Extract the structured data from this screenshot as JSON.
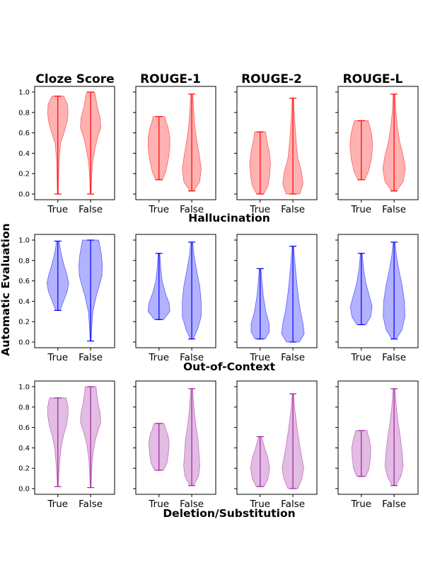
{
  "figure": {
    "ylabel": "Automatic Evaluation",
    "columns": [
      "Cloze Score",
      "ROUGE-1",
      "ROUGE-2",
      "ROUGE-L"
    ],
    "rows": [
      {
        "label": "Hallucination",
        "color": "#ff0000"
      },
      {
        "label": "Out-of-Context",
        "color": "#0000ff"
      },
      {
        "label": "Deletion/Substitution",
        "color": "#a020a0"
      }
    ],
    "categories": [
      "True",
      "False"
    ],
    "yticks": [
      "0.0",
      "0.2",
      "0.4",
      "0.6",
      "0.8",
      "1.0"
    ]
  },
  "chart_data": [
    {
      "type": "violin",
      "row": "Hallucination",
      "title": "Cloze Score",
      "categories": [
        "True",
        "False"
      ],
      "ylim": [
        0,
        1
      ],
      "series": [
        {
          "category": "True",
          "min": 0.0,
          "max": 0.96,
          "profile": [
            [
              0.0,
              0.02
            ],
            [
              0.1,
              0.03
            ],
            [
              0.2,
              0.04
            ],
            [
              0.35,
              0.06
            ],
            [
              0.5,
              0.12
            ],
            [
              0.62,
              0.3
            ],
            [
              0.72,
              0.42
            ],
            [
              0.8,
              0.45
            ],
            [
              0.88,
              0.43
            ],
            [
              0.93,
              0.32
            ],
            [
              0.96,
              0.26
            ]
          ]
        },
        {
          "category": "False",
          "min": 0.0,
          "max": 1.0,
          "profile": [
            [
              0.0,
              0.02
            ],
            [
              0.15,
              0.04
            ],
            [
              0.3,
              0.08
            ],
            [
              0.45,
              0.2
            ],
            [
              0.55,
              0.3
            ],
            [
              0.65,
              0.45
            ],
            [
              0.75,
              0.42
            ],
            [
              0.85,
              0.3
            ],
            [
              0.95,
              0.22
            ],
            [
              1.0,
              0.18
            ]
          ]
        }
      ]
    },
    {
      "type": "violin",
      "row": "Hallucination",
      "title": "ROUGE-1",
      "categories": [
        "True",
        "False"
      ],
      "ylim": [
        0,
        1
      ],
      "series": [
        {
          "category": "True",
          "min": 0.14,
          "max": 0.76,
          "profile": [
            [
              0.14,
              0.15
            ],
            [
              0.22,
              0.3
            ],
            [
              0.35,
              0.42
            ],
            [
              0.45,
              0.48
            ],
            [
              0.55,
              0.48
            ],
            [
              0.65,
              0.4
            ],
            [
              0.72,
              0.3
            ],
            [
              0.76,
              0.26
            ]
          ]
        },
        {
          "category": "False",
          "min": 0.03,
          "max": 0.98,
          "profile": [
            [
              0.03,
              0.08
            ],
            [
              0.12,
              0.35
            ],
            [
              0.25,
              0.42
            ],
            [
              0.4,
              0.32
            ],
            [
              0.55,
              0.2
            ],
            [
              0.7,
              0.12
            ],
            [
              0.85,
              0.08
            ],
            [
              0.98,
              0.04
            ]
          ]
        }
      ]
    },
    {
      "type": "violin",
      "row": "Hallucination",
      "title": "ROUGE-2",
      "categories": [
        "True",
        "False"
      ],
      "ylim": [
        0,
        1
      ],
      "series": [
        {
          "category": "True",
          "min": 0.0,
          "max": 0.61,
          "profile": [
            [
              0.0,
              0.15
            ],
            [
              0.08,
              0.35
            ],
            [
              0.18,
              0.42
            ],
            [
              0.3,
              0.46
            ],
            [
              0.42,
              0.4
            ],
            [
              0.52,
              0.3
            ],
            [
              0.58,
              0.26
            ],
            [
              0.61,
              0.24
            ]
          ]
        },
        {
          "category": "False",
          "min": 0.0,
          "max": 0.94,
          "profile": [
            [
              0.0,
              0.3
            ],
            [
              0.1,
              0.45
            ],
            [
              0.22,
              0.38
            ],
            [
              0.35,
              0.22
            ],
            [
              0.5,
              0.15
            ],
            [
              0.65,
              0.1
            ],
            [
              0.8,
              0.06
            ],
            [
              0.94,
              0.03
            ]
          ]
        }
      ]
    },
    {
      "type": "violin",
      "row": "Hallucination",
      "title": "ROUGE-L",
      "categories": [
        "True",
        "False"
      ],
      "ylim": [
        0,
        1
      ],
      "series": [
        {
          "category": "True",
          "min": 0.14,
          "max": 0.72,
          "profile": [
            [
              0.14,
              0.15
            ],
            [
              0.22,
              0.32
            ],
            [
              0.35,
              0.45
            ],
            [
              0.48,
              0.5
            ],
            [
              0.58,
              0.46
            ],
            [
              0.66,
              0.38
            ],
            [
              0.72,
              0.3
            ]
          ]
        },
        {
          "category": "False",
          "min": 0.03,
          "max": 0.98,
          "profile": [
            [
              0.03,
              0.1
            ],
            [
              0.12,
              0.4
            ],
            [
              0.25,
              0.5
            ],
            [
              0.38,
              0.4
            ],
            [
              0.5,
              0.26
            ],
            [
              0.65,
              0.15
            ],
            [
              0.8,
              0.08
            ],
            [
              0.98,
              0.04
            ]
          ]
        }
      ]
    },
    {
      "type": "violin",
      "row": "Out-of-Context",
      "title": "Cloze Score",
      "categories": [
        "True",
        "False"
      ],
      "ylim": [
        0,
        1
      ],
      "series": [
        {
          "category": "True",
          "min": 0.31,
          "max": 0.99,
          "profile": [
            [
              0.31,
              0.1
            ],
            [
              0.4,
              0.25
            ],
            [
              0.5,
              0.42
            ],
            [
              0.58,
              0.48
            ],
            [
              0.66,
              0.4
            ],
            [
              0.75,
              0.28
            ],
            [
              0.85,
              0.16
            ],
            [
              0.95,
              0.08
            ],
            [
              0.99,
              0.06
            ]
          ]
        },
        {
          "category": "False",
          "min": 0.01,
          "max": 1.0,
          "profile": [
            [
              0.01,
              0.02
            ],
            [
              0.15,
              0.05
            ],
            [
              0.3,
              0.1
            ],
            [
              0.45,
              0.25
            ],
            [
              0.55,
              0.38
            ],
            [
              0.65,
              0.5
            ],
            [
              0.75,
              0.52
            ],
            [
              0.85,
              0.48
            ],
            [
              0.95,
              0.4
            ],
            [
              1.0,
              0.36
            ]
          ]
        }
      ]
    },
    {
      "type": "violin",
      "row": "Out-of-Context",
      "title": "ROUGE-1",
      "categories": [
        "True",
        "False"
      ],
      "ylim": [
        0,
        1
      ],
      "series": [
        {
          "category": "True",
          "min": 0.22,
          "max": 0.87,
          "profile": [
            [
              0.22,
              0.2
            ],
            [
              0.3,
              0.48
            ],
            [
              0.38,
              0.45
            ],
            [
              0.48,
              0.28
            ],
            [
              0.6,
              0.14
            ],
            [
              0.72,
              0.08
            ],
            [
              0.87,
              0.04
            ]
          ]
        },
        {
          "category": "False",
          "min": 0.03,
          "max": 0.98,
          "profile": [
            [
              0.03,
              0.06
            ],
            [
              0.12,
              0.25
            ],
            [
              0.25,
              0.42
            ],
            [
              0.4,
              0.42
            ],
            [
              0.55,
              0.35
            ],
            [
              0.7,
              0.22
            ],
            [
              0.85,
              0.1
            ],
            [
              0.98,
              0.04
            ]
          ]
        }
      ]
    },
    {
      "type": "violin",
      "row": "Out-of-Context",
      "title": "ROUGE-2",
      "categories": [
        "True",
        "False"
      ],
      "ylim": [
        0,
        1
      ],
      "series": [
        {
          "category": "True",
          "min": 0.03,
          "max": 0.72,
          "profile": [
            [
              0.03,
              0.22
            ],
            [
              0.1,
              0.4
            ],
            [
              0.18,
              0.4
            ],
            [
              0.3,
              0.25
            ],
            [
              0.45,
              0.14
            ],
            [
              0.6,
              0.08
            ],
            [
              0.72,
              0.04
            ]
          ]
        },
        {
          "category": "False",
          "min": 0.0,
          "max": 0.94,
          "profile": [
            [
              0.0,
              0.28
            ],
            [
              0.08,
              0.5
            ],
            [
              0.18,
              0.45
            ],
            [
              0.32,
              0.32
            ],
            [
              0.48,
              0.22
            ],
            [
              0.65,
              0.14
            ],
            [
              0.8,
              0.08
            ],
            [
              0.94,
              0.03
            ]
          ]
        }
      ]
    },
    {
      "type": "violin",
      "row": "Out-of-Context",
      "title": "ROUGE-L",
      "categories": [
        "True",
        "False"
      ],
      "ylim": [
        0,
        1
      ],
      "series": [
        {
          "category": "True",
          "min": 0.17,
          "max": 0.87,
          "profile": [
            [
              0.17,
              0.2
            ],
            [
              0.25,
              0.42
            ],
            [
              0.35,
              0.48
            ],
            [
              0.45,
              0.36
            ],
            [
              0.58,
              0.2
            ],
            [
              0.72,
              0.1
            ],
            [
              0.87,
              0.04
            ]
          ]
        },
        {
          "category": "False",
          "min": 0.03,
          "max": 0.98,
          "profile": [
            [
              0.03,
              0.1
            ],
            [
              0.12,
              0.35
            ],
            [
              0.25,
              0.48
            ],
            [
              0.4,
              0.46
            ],
            [
              0.55,
              0.36
            ],
            [
              0.7,
              0.22
            ],
            [
              0.85,
              0.1
            ],
            [
              0.98,
              0.04
            ]
          ]
        }
      ]
    },
    {
      "type": "violin",
      "row": "Deletion/Substitution",
      "title": "Cloze Score",
      "categories": [
        "True",
        "False"
      ],
      "ylim": [
        0,
        1
      ],
      "series": [
        {
          "category": "True",
          "min": 0.02,
          "max": 0.89,
          "profile": [
            [
              0.02,
              0.02
            ],
            [
              0.12,
              0.04
            ],
            [
              0.25,
              0.08
            ],
            [
              0.4,
              0.14
            ],
            [
              0.52,
              0.25
            ],
            [
              0.62,
              0.38
            ],
            [
              0.72,
              0.45
            ],
            [
              0.8,
              0.45
            ],
            [
              0.86,
              0.4
            ],
            [
              0.89,
              0.36
            ]
          ]
        },
        {
          "category": "False",
          "min": 0.01,
          "max": 1.0,
          "profile": [
            [
              0.01,
              0.02
            ],
            [
              0.15,
              0.04
            ],
            [
              0.3,
              0.08
            ],
            [
              0.45,
              0.18
            ],
            [
              0.55,
              0.3
            ],
            [
              0.65,
              0.45
            ],
            [
              0.75,
              0.42
            ],
            [
              0.85,
              0.32
            ],
            [
              0.95,
              0.26
            ],
            [
              1.0,
              0.24
            ]
          ]
        }
      ]
    },
    {
      "type": "violin",
      "row": "Deletion/Substitution",
      "title": "ROUGE-1",
      "categories": [
        "True",
        "False"
      ],
      "ylim": [
        0,
        1
      ],
      "series": [
        {
          "category": "True",
          "min": 0.18,
          "max": 0.64,
          "profile": [
            [
              0.18,
              0.2
            ],
            [
              0.25,
              0.35
            ],
            [
              0.35,
              0.42
            ],
            [
              0.45,
              0.45
            ],
            [
              0.52,
              0.4
            ],
            [
              0.58,
              0.3
            ],
            [
              0.64,
              0.22
            ]
          ]
        },
        {
          "category": "False",
          "min": 0.03,
          "max": 0.98,
          "profile": [
            [
              0.03,
              0.08
            ],
            [
              0.12,
              0.3
            ],
            [
              0.22,
              0.36
            ],
            [
              0.35,
              0.32
            ],
            [
              0.48,
              0.28
            ],
            [
              0.62,
              0.18
            ],
            [
              0.78,
              0.1
            ],
            [
              0.98,
              0.04
            ]
          ]
        }
      ]
    },
    {
      "type": "violin",
      "row": "Deletion/Substitution",
      "title": "ROUGE-2",
      "categories": [
        "True",
        "False"
      ],
      "ylim": [
        0,
        1
      ],
      "series": [
        {
          "category": "True",
          "min": 0.02,
          "max": 0.51,
          "profile": [
            [
              0.02,
              0.18
            ],
            [
              0.1,
              0.35
            ],
            [
              0.2,
              0.42
            ],
            [
              0.3,
              0.35
            ],
            [
              0.4,
              0.2
            ],
            [
              0.51,
              0.06
            ]
          ]
        },
        {
          "category": "False",
          "min": 0.0,
          "max": 0.93,
          "profile": [
            [
              0.0,
              0.22
            ],
            [
              0.1,
              0.4
            ],
            [
              0.2,
              0.48
            ],
            [
              0.32,
              0.38
            ],
            [
              0.45,
              0.28
            ],
            [
              0.6,
              0.18
            ],
            [
              0.78,
              0.08
            ],
            [
              0.93,
              0.03
            ]
          ]
        }
      ]
    },
    {
      "type": "violin",
      "row": "Deletion/Substitution",
      "title": "ROUGE-L",
      "categories": [
        "True",
        "False"
      ],
      "ylim": [
        0,
        1
      ],
      "series": [
        {
          "category": "True",
          "min": 0.12,
          "max": 0.57,
          "profile": [
            [
              0.12,
              0.2
            ],
            [
              0.2,
              0.35
            ],
            [
              0.3,
              0.4
            ],
            [
              0.4,
              0.42
            ],
            [
              0.48,
              0.36
            ],
            [
              0.54,
              0.28
            ],
            [
              0.57,
              0.25
            ]
          ]
        },
        {
          "category": "False",
          "min": 0.03,
          "max": 0.98,
          "profile": [
            [
              0.03,
              0.08
            ],
            [
              0.12,
              0.3
            ],
            [
              0.22,
              0.4
            ],
            [
              0.35,
              0.36
            ],
            [
              0.5,
              0.28
            ],
            [
              0.65,
              0.18
            ],
            [
              0.8,
              0.1
            ],
            [
              0.98,
              0.04
            ]
          ]
        }
      ]
    }
  ]
}
